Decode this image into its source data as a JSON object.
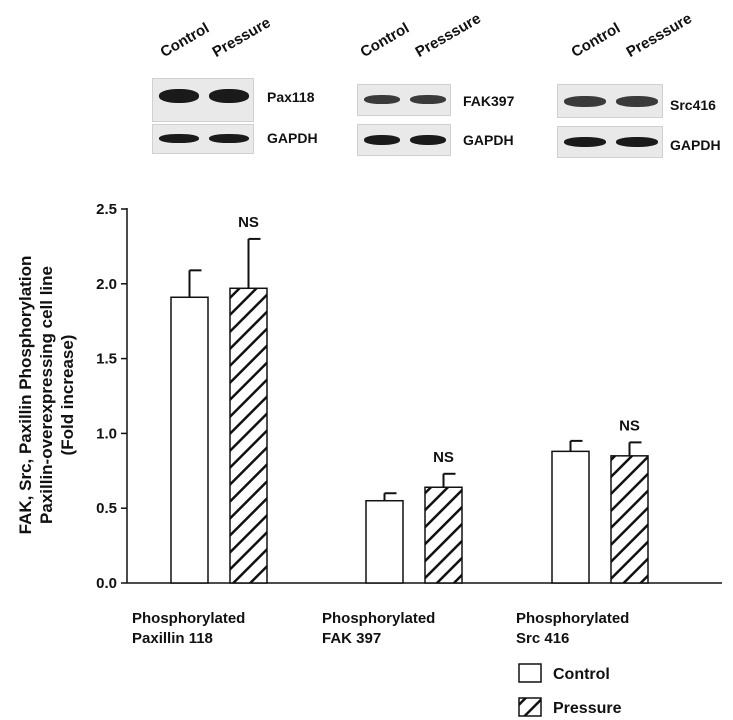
{
  "blots": [
    {
      "lanes": [
        "Control",
        "Pressure"
      ],
      "rows": [
        {
          "label": "Pax118"
        },
        {
          "label": "GAPDH"
        }
      ]
    },
    {
      "lanes": [
        "Control",
        "Presssure"
      ],
      "rows": [
        {
          "label": "FAK397"
        },
        {
          "label": "GAPDH"
        }
      ]
    },
    {
      "lanes": [
        "Control",
        "Presssure"
      ],
      "rows": [
        {
          "label": "Src416"
        },
        {
          "label": "GAPDH"
        }
      ]
    }
  ],
  "chart_data": {
    "type": "bar",
    "ylabel": [
      "FAK, Src, Paxillin Phosphorylation",
      "Paxillin-overexpressing cell line",
      "(Fold increase)"
    ],
    "xlabel": "",
    "ylim": [
      0,
      2.5
    ],
    "yticks": [
      "0.0",
      "0.5",
      "1.0",
      "1.5",
      "2.0",
      "2.5"
    ],
    "categories": [
      [
        "Phosphorylated",
        "Paxillin 118"
      ],
      [
        "Phosphorylated",
        "FAK 397"
      ],
      [
        "Phosphorylated",
        "Src 416"
      ]
    ],
    "series": [
      {
        "name": "Control",
        "values": [
          1.91,
          0.55,
          0.88
        ],
        "errors": [
          0.18,
          0.05,
          0.07
        ],
        "fill": "white"
      },
      {
        "name": "Pressure",
        "values": [
          1.97,
          0.64,
          0.85
        ],
        "errors": [
          0.33,
          0.09,
          0.09
        ],
        "fill": "hatch"
      }
    ],
    "annotations": [
      "NS",
      "NS",
      "NS"
    ],
    "legend": "bottom-right",
    "grid": false
  }
}
